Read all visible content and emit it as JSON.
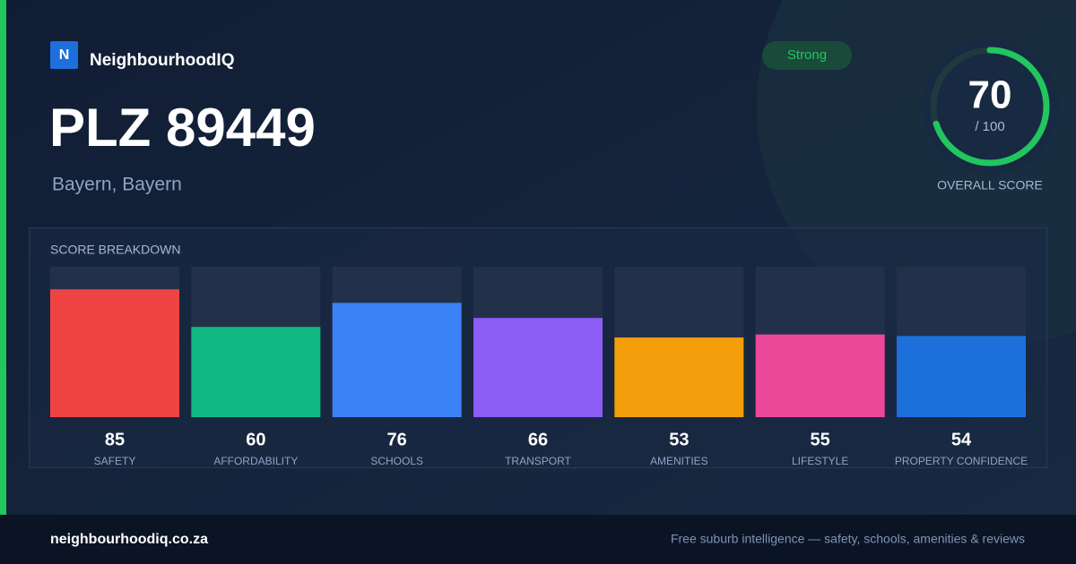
{
  "brand": {
    "logo": "N",
    "name": "NeighbourhoodIQ"
  },
  "title": "PLZ 89449",
  "subtitle": "Bayern, Bayern",
  "badge": "Strong",
  "overall": {
    "value": 70,
    "out_of": {
      "value": 100,
      "label": "/ 100"
    },
    "label": "OVERALL SCORE",
    "color": "#22c55e"
  },
  "breakdown": {
    "title": "SCORE BREAKDOWN",
    "items": [
      {
        "name": "SAFETY",
        "value": 85,
        "color": "#ef4444"
      },
      {
        "name": "AFFORDABILITY",
        "value": 60,
        "color": "#10b981"
      },
      {
        "name": "SCHOOLS",
        "value": 76,
        "color": "#3b82f6"
      },
      {
        "name": "TRANSPORT",
        "value": 66,
        "color": "#8b5cf6"
      },
      {
        "name": "AMENITIES",
        "value": 53,
        "color": "#f59e0b"
      },
      {
        "name": "LIFESTYLE",
        "value": 55,
        "color": "#ec4899"
      },
      {
        "name": "PROPERTY CONFIDENCE",
        "value": 54,
        "color": "#1d6fdc"
      }
    ]
  },
  "footer": {
    "url": "neighbourhoodiq.co.za",
    "tagline": "Free suburb intelligence — safety, schools, amenities & reviews"
  }
}
